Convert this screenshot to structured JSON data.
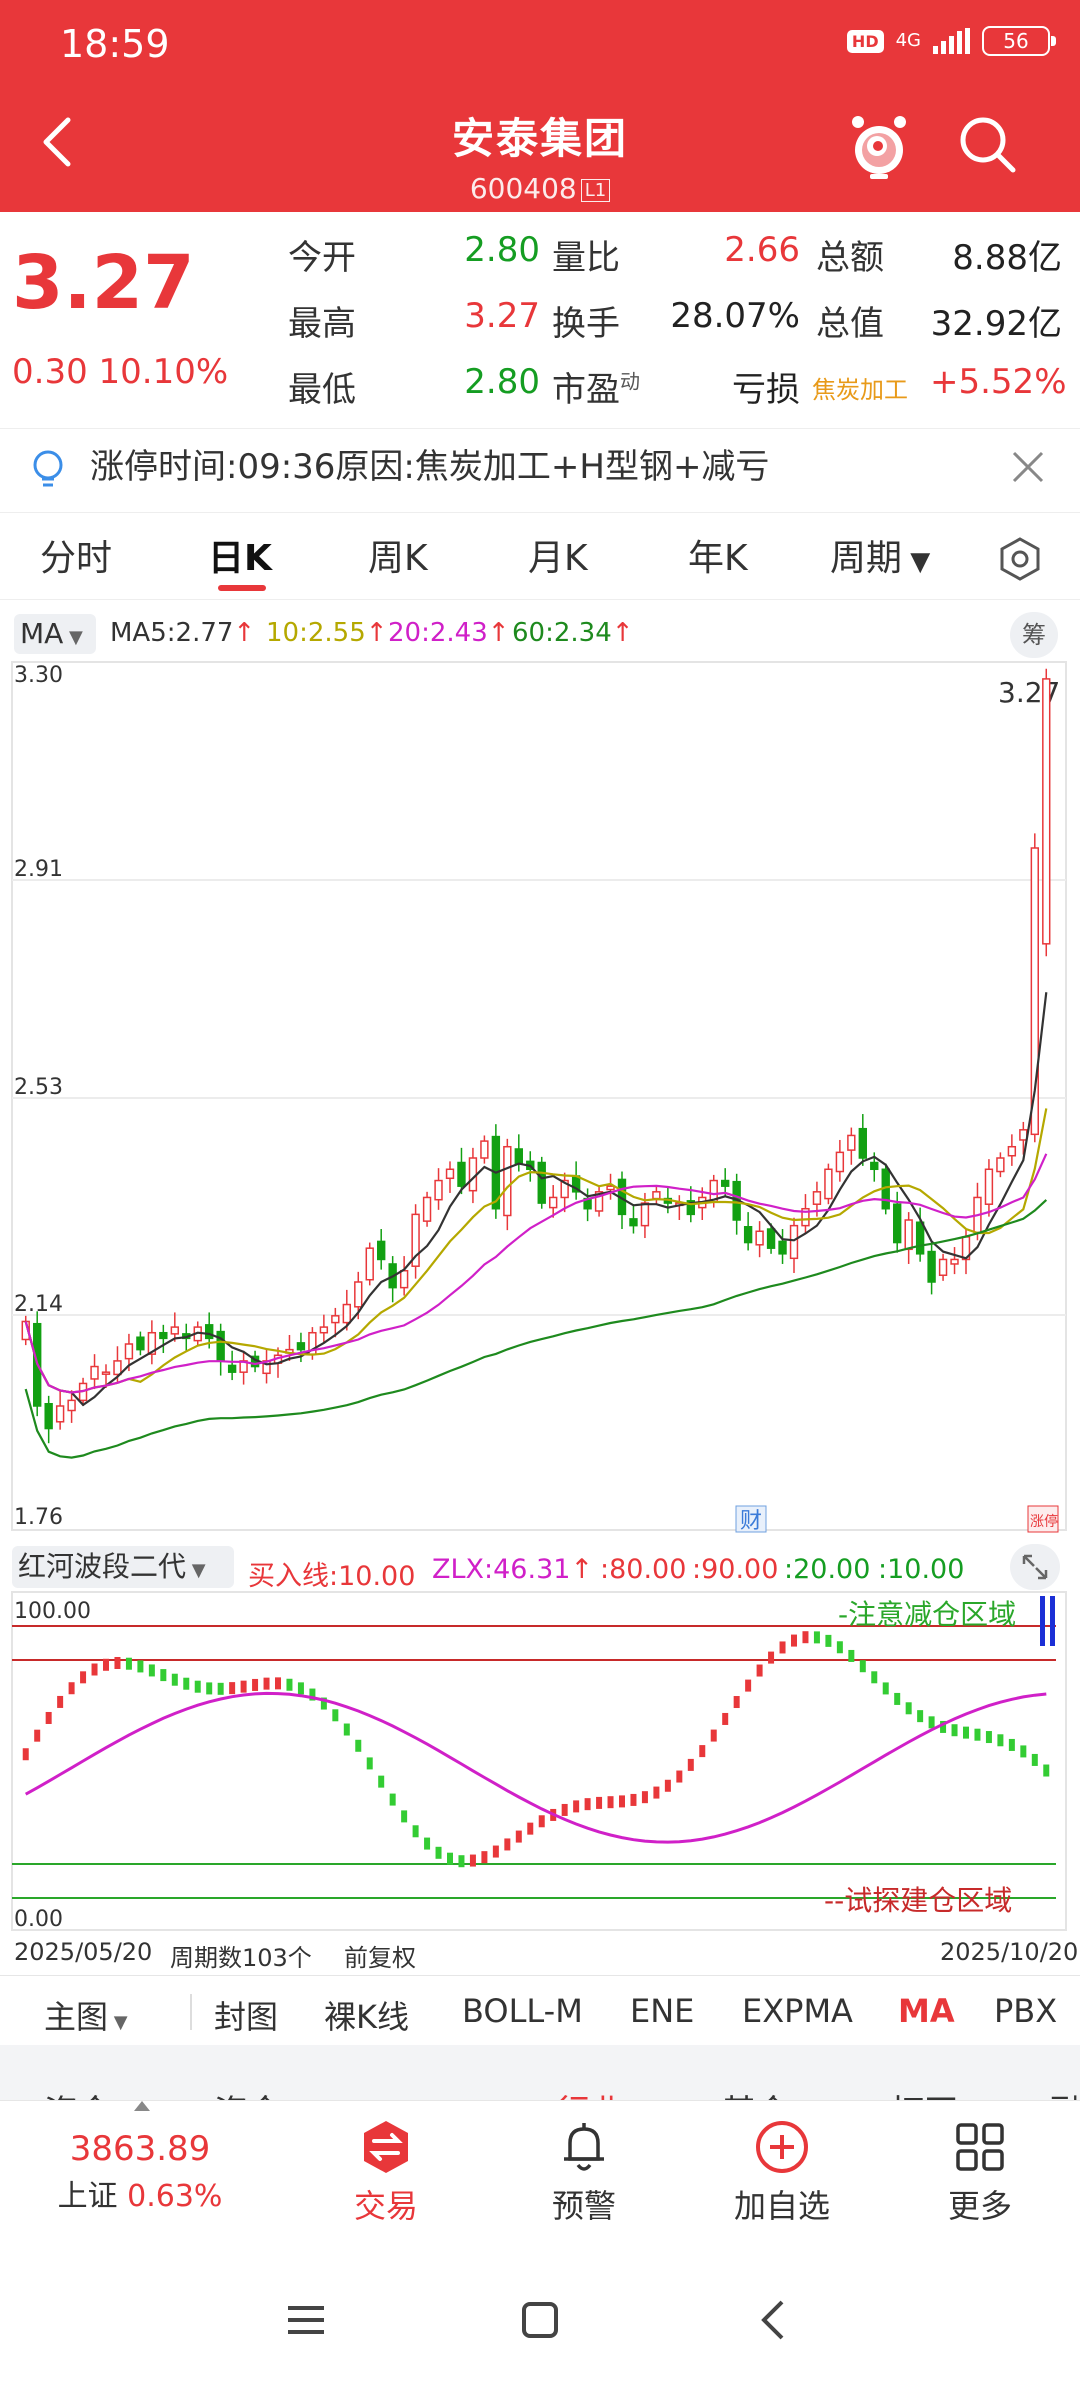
{
  "status_bar": {
    "time": "18:59",
    "hd": "HD",
    "network": "4G",
    "battery": "56"
  },
  "header": {
    "stock_name": "安泰集团",
    "stock_code": "600408",
    "code_badge": "L1"
  },
  "quote": {
    "price": "3.27",
    "change": "0.30",
    "change_pct": "10.10%",
    "fields": [
      {
        "label": "今开",
        "value": "2.80"
      },
      {
        "label": "量比",
        "value": "2.66"
      },
      {
        "label": "总额",
        "value": "8.88亿"
      },
      {
        "label": "最高",
        "value": "3.27"
      },
      {
        "label": "换手",
        "value": "28.07%"
      },
      {
        "label": "总值",
        "value": "32.92亿"
      },
      {
        "label": "最低",
        "value": "2.80"
      },
      {
        "label": "市盈",
        "label_sup": "动",
        "value": "亏损"
      }
    ],
    "sector": {
      "name": "焦炭加工",
      "change": "+5.52%"
    }
  },
  "notice": {
    "text": "涨停时间:09:36原因:焦炭加工+H型钢+减亏"
  },
  "tabs": [
    {
      "label": "分时"
    },
    {
      "label": "日K"
    },
    {
      "label": "周K"
    },
    {
      "label": "月K"
    },
    {
      "label": "年K"
    },
    {
      "label": "周期"
    }
  ],
  "ma_legend": {
    "select": "MA",
    "items": [
      {
        "text": "MA5:2.77",
        "color": "#333333"
      },
      {
        "text": "10:2.55",
        "color": "#b5a800"
      },
      {
        "text": "20:2.43",
        "color": "#d020c8"
      },
      {
        "text": "60:2.34",
        "color": "#1e8a1e"
      }
    ],
    "chou_label": "筹"
  },
  "chart_data": {
    "type": "candlestick",
    "ylim": [
      1.76,
      3.3
    ],
    "y_ticks": [
      "3.30",
      "2.91",
      "2.53",
      "2.14",
      "1.76"
    ],
    "last_price_label": "3.27",
    "marker_cai": "财",
    "marker_zhangting": "涨停",
    "candles_close": [
      2.13,
      1.98,
      1.94,
      1.98,
      1.99,
      2.02,
      2.05,
      2.04,
      2.06,
      2.09,
      2.08,
      2.11,
      2.1,
      2.12,
      2.1,
      2.12,
      2.1,
      2.06,
      2.04,
      2.06,
      2.05,
      2.06,
      2.07,
      2.08,
      2.08,
      2.11,
      2.12,
      2.14,
      2.16,
      2.2,
      2.26,
      2.24,
      2.19,
      2.22,
      2.32,
      2.35,
      2.38,
      2.4,
      2.37,
      2.42,
      2.45,
      2.33,
      2.44,
      2.41,
      2.4,
      2.34,
      2.35,
      2.38,
      2.36,
      2.33,
      2.36,
      2.37,
      2.32,
      2.3,
      2.34,
      2.36,
      2.34,
      2.34,
      2.32,
      2.35,
      2.38,
      2.37,
      2.31,
      2.27,
      2.29,
      2.26,
      2.25,
      2.3,
      2.33,
      2.36,
      2.4,
      2.43,
      2.46,
      2.42,
      2.4,
      2.33,
      2.27,
      2.31,
      2.25,
      2.2,
      2.24,
      2.24,
      2.28,
      2.35,
      2.4,
      2.42,
      2.44,
      2.47,
      2.97,
      3.27
    ],
    "ma5_last": 2.77,
    "ma10_last": 2.55,
    "ma20_last": 2.43,
    "ma60_last": 2.34
  },
  "indicator": {
    "select": "红河波段二代",
    "items": [
      {
        "text": "买入线:10.00",
        "color": "#e8373a"
      },
      {
        "text": "ZLX:46.31",
        "color": "#d020c8"
      },
      {
        "text": ":80.00",
        "color": "#e8373a"
      },
      {
        "text": ":90.00",
        "color": "#e8373a"
      },
      {
        "text": ":20.00",
        "color": "#159d22"
      },
      {
        "text": ":10.00",
        "color": "#159d22"
      }
    ],
    "top_label": "100.00",
    "bottom_label": "0.00",
    "zone_reduce": "-注意减仓区域",
    "zone_build": "--试探建仓区域"
  },
  "date_row": {
    "start": "2025/05/20",
    "count": "周期数103个",
    "adjust": "前复权",
    "end": "2025/10/20"
  },
  "indicator_tabs": [
    {
      "label": "主图"
    },
    {
      "label": "封图"
    },
    {
      "label": "裸K线"
    },
    {
      "label": "BOLL-M"
    },
    {
      "label": "ENE"
    },
    {
      "label": "EXPMA"
    },
    {
      "label": "MA"
    },
    {
      "label": "PBX"
    }
  ],
  "cut_row": [
    "资金",
    "资金",
    "行业",
    "基金",
    "打开",
    "融"
  ],
  "bottom_nav": {
    "index": {
      "value": "3863.89",
      "name": "上证",
      "pct": "0.63%"
    },
    "items": [
      {
        "label": "交易"
      },
      {
        "label": "预警"
      },
      {
        "label": "加自选"
      },
      {
        "label": "更多"
      }
    ]
  }
}
